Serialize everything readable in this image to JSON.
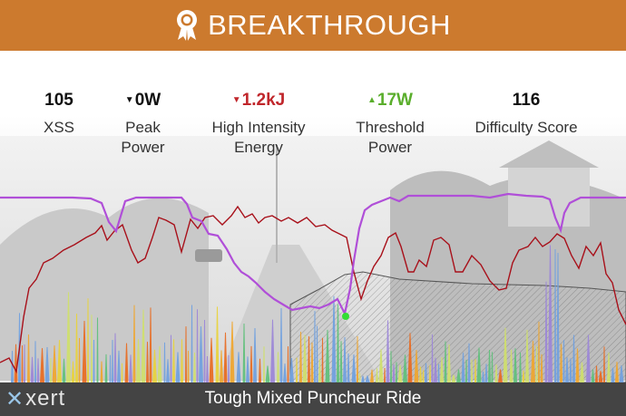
{
  "banner": {
    "title": "BREAKTHROUGH",
    "icon": "award-badge-icon",
    "color": "#cc7a2e"
  },
  "stats": [
    {
      "value": "105",
      "label_line1": "XSS",
      "label_line2": "",
      "trend": "none"
    },
    {
      "value": "0W",
      "label_line1": "Peak",
      "label_line2": "Power",
      "trend": "down"
    },
    {
      "value": "1.2kJ",
      "label_line1": "High Intensity",
      "label_line2": "Energy",
      "trend": "down"
    },
    {
      "value": "17W",
      "label_line1": "Threshold",
      "label_line2": "Power",
      "trend": "up"
    },
    {
      "value": "116",
      "label_line1": "Difficulty Score",
      "label_line2": "",
      "trend": "none"
    }
  ],
  "colors": {
    "positive": "#5aae2c",
    "negative": "#c0262b",
    "power_line": "#a8101a",
    "mpa_line": "#b04fd8",
    "footer": "#444444"
  },
  "footer": {
    "logo_text": "xert",
    "ride_title": "Tough Mixed Puncheur Ride"
  }
}
